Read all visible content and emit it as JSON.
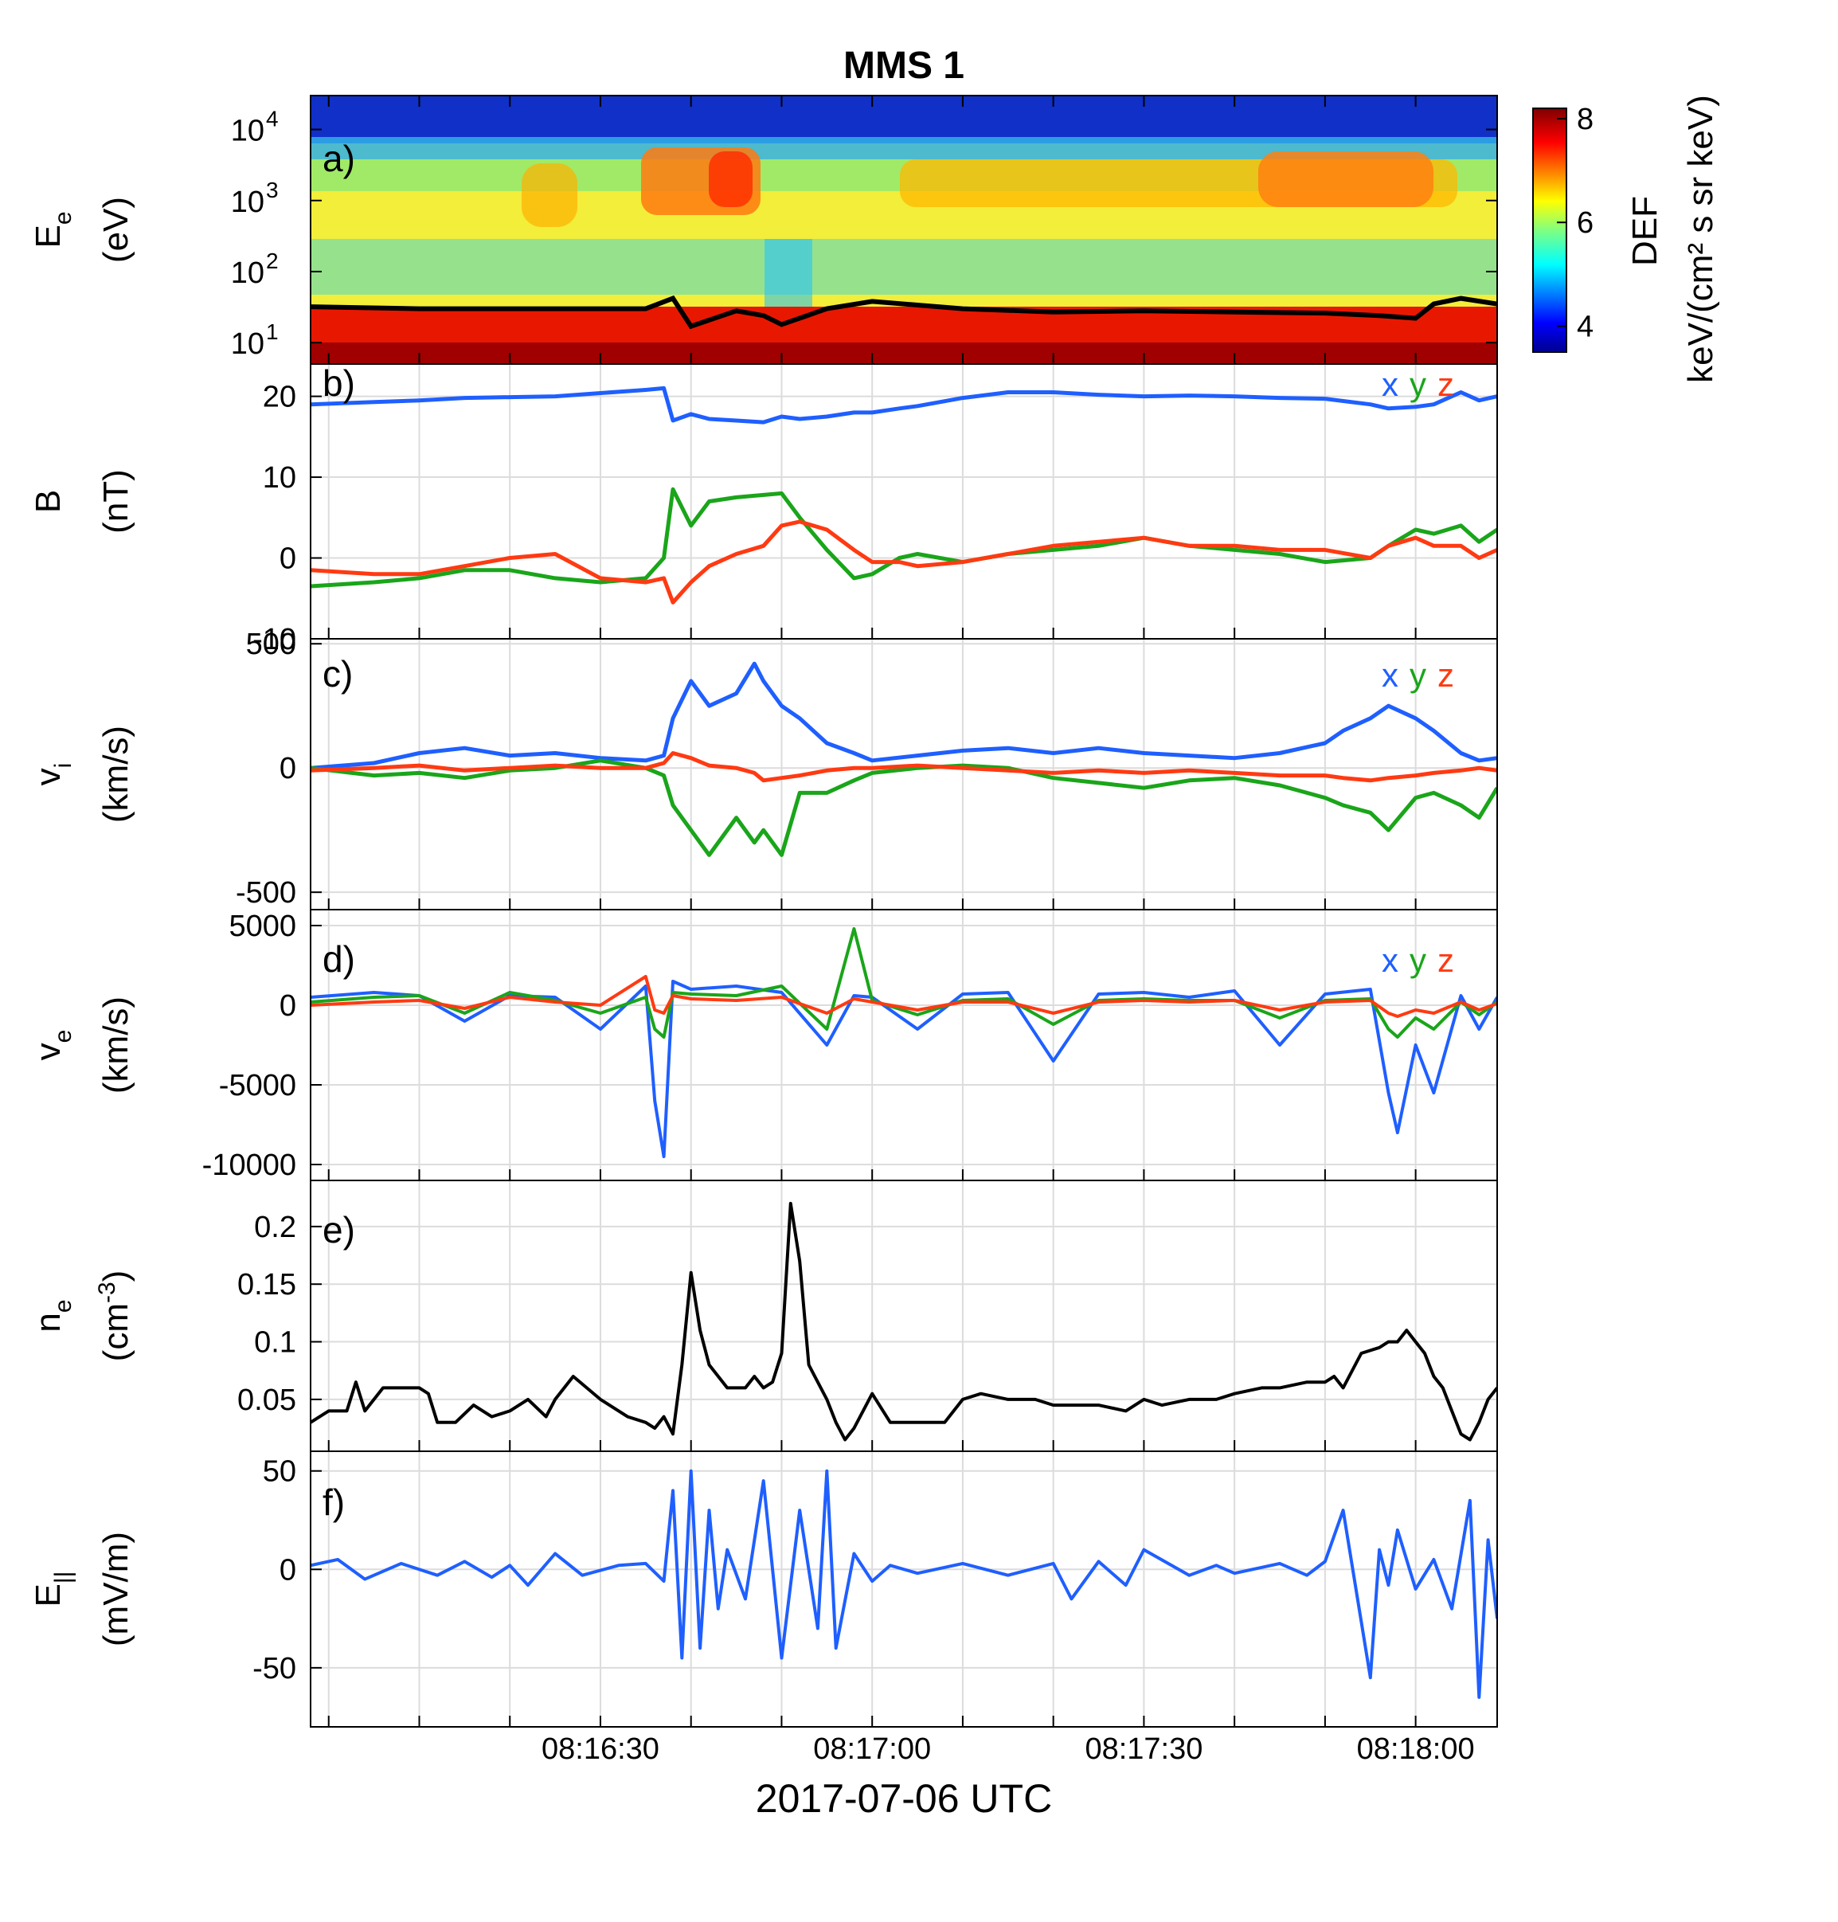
{
  "title": "MMS 1",
  "xlabel": "2017-07-06 UTC",
  "colors": {
    "x": "#1f5fff",
    "y": "#1aa51a",
    "z": "#ff3a12",
    "black": "#000000"
  },
  "x_axis": {
    "range_seconds": [
      "08:15:58",
      "08:18:09"
    ],
    "ticks": [
      "08:16:30",
      "08:17:00",
      "08:17:30",
      "08:18:00"
    ]
  },
  "colorbar": {
    "label": "DEF",
    "units": "keV/(cm² s sr keV)",
    "range": [
      3.5,
      8.2
    ],
    "ticks": [
      "4",
      "6",
      "8"
    ]
  },
  "panels": [
    {
      "tag": "a)",
      "ylabel": "E",
      "ylabel_sub": "e",
      "yunit": "(eV)",
      "yticks": [
        "10",
        "10",
        "10",
        "10"
      ],
      "yexp": [
        "1",
        "2",
        "3",
        "4"
      ]
    },
    {
      "tag": "b)",
      "ylabel": "B",
      "ylabel_sub": "",
      "yunit": "(nT)",
      "yticks": [
        "20",
        "10",
        "0",
        "-10"
      ],
      "legend": [
        "x",
        "y",
        "z"
      ]
    },
    {
      "tag": "c)",
      "ylabel": "v",
      "ylabel_sub": "i",
      "yunit": "(km/s)",
      "yticks": [
        "500",
        "0",
        "-500"
      ],
      "legend": [
        "x",
        "y",
        "z"
      ]
    },
    {
      "tag": "d)",
      "ylabel": "v",
      "ylabel_sub": "e",
      "yunit": "(km/s)",
      "yticks": [
        "5000",
        "0",
        "-5000",
        "-10000"
      ],
      "legend": [
        "x",
        "y",
        "z"
      ]
    },
    {
      "tag": "e)",
      "ylabel": "n",
      "ylabel_sub": "e",
      "yunit": "(cm",
      "yunit_sup": "-3",
      "yunit_end": ")",
      "yticks": [
        "0.2",
        "0.15",
        "0.1",
        "0.05"
      ]
    },
    {
      "tag": "f)",
      "ylabel": "E",
      "ylabel_sub": "||",
      "yunit": "(mV/m)",
      "yticks": [
        "50",
        "0",
        "-50"
      ]
    }
  ],
  "chart_data": [
    {
      "type": "heatmap",
      "panel": "a)",
      "ylabel": "E_e (eV)",
      "yscale": "log",
      "ylim": [
        5,
        30000
      ],
      "x_seconds_after_0816": [
        -2,
        129
      ],
      "description_values": {
        "background_DEF": 5.8,
        "high_flux_bands": [
          {
            "t": [
              39,
              51
            ],
            "E": [
              700,
              3000
            ],
            "DEF": 7.4
          },
          {
            "t": [
              88,
              124
            ],
            "E": [
              800,
              3000
            ],
            "DEF": 7.0
          }
        ],
        "low_energy_band_DEF": 8.0
      },
      "spacecraft_potential_line": {
        "x": [
          -2,
          10,
          25,
          35,
          38,
          40,
          45,
          48,
          50,
          55,
          60,
          70,
          80,
          90,
          100,
          110,
          116,
          120,
          122,
          125,
          129
        ],
        "y": [
          32,
          30,
          30,
          30,
          42,
          17,
          28,
          24,
          18,
          30,
          38,
          30,
          27,
          28,
          27,
          26,
          24,
          22,
          35,
          42,
          35
        ]
      }
    },
    {
      "type": "line",
      "panel": "b)",
      "ylabel": "B (nT)",
      "ylim": [
        -10,
        24
      ],
      "x": [
        -2,
        5,
        10,
        15,
        20,
        25,
        30,
        35,
        37,
        38,
        40,
        42,
        45,
        48,
        50,
        52,
        55,
        58,
        60,
        63,
        65,
        70,
        75,
        80,
        85,
        90,
        95,
        100,
        105,
        110,
        115,
        117,
        120,
        122,
        125,
        127,
        129
      ],
      "series": [
        {
          "name": "x",
          "values": [
            19,
            19.3,
            19.5,
            19.8,
            19.9,
            20.0,
            20.4,
            20.8,
            21,
            17,
            17.8,
            17.2,
            17.0,
            16.8,
            17.5,
            17.2,
            17.5,
            18.0,
            18.0,
            18.5,
            18.8,
            19.8,
            20.5,
            20.5,
            20.2,
            20.0,
            20.1,
            20.0,
            19.8,
            19.7,
            19.0,
            18.5,
            18.7,
            19.0,
            20.5,
            19.5,
            20.0
          ]
        },
        {
          "name": "y",
          "values": [
            -3.5,
            -3,
            -2.5,
            -1.5,
            -1.5,
            -2.5,
            -3,
            -2.5,
            0,
            8.5,
            4,
            7,
            7.5,
            7.8,
            8,
            5,
            1,
            -2.5,
            -2,
            0,
            0.5,
            -0.5,
            0.5,
            1,
            1.5,
            2.5,
            1.5,
            1,
            0.5,
            -0.5,
            0,
            1.5,
            3.5,
            3,
            4,
            2,
            3.5
          ]
        },
        {
          "name": "z",
          "values": [
            -1.5,
            -2,
            -2,
            -1,
            0,
            0.5,
            -2.5,
            -3,
            -2.5,
            -5.5,
            -3,
            -1,
            0.5,
            1.5,
            4,
            4.5,
            3.5,
            1,
            -0.5,
            -0.5,
            -1,
            -0.5,
            0.5,
            1.5,
            2,
            2.5,
            1.5,
            1.5,
            1,
            1,
            0,
            1.5,
            2.5,
            1.5,
            1.5,
            0,
            1
          ]
        }
      ]
    },
    {
      "type": "line",
      "panel": "c)",
      "ylabel": "v_i (km/s)",
      "ylim": [
        -570,
        520
      ],
      "x": [
        -2,
        5,
        10,
        15,
        20,
        25,
        30,
        35,
        37,
        38,
        40,
        42,
        45,
        47,
        48,
        50,
        52,
        55,
        58,
        60,
        65,
        70,
        75,
        80,
        85,
        90,
        95,
        100,
        105,
        110,
        112,
        115,
        117,
        120,
        122,
        125,
        127,
        129
      ],
      "series": [
        {
          "name": "x",
          "values": [
            0,
            20,
            60,
            80,
            50,
            60,
            40,
            30,
            50,
            200,
            350,
            250,
            300,
            420,
            350,
            250,
            200,
            100,
            60,
            30,
            50,
            70,
            80,
            60,
            80,
            60,
            50,
            40,
            60,
            100,
            150,
            200,
            250,
            200,
            150,
            60,
            30,
            40
          ]
        },
        {
          "name": "y",
          "values": [
            0,
            -30,
            -20,
            -40,
            -10,
            0,
            30,
            0,
            -30,
            -150,
            -250,
            -350,
            -200,
            -300,
            -250,
            -350,
            -100,
            -100,
            -50,
            -20,
            0,
            10,
            0,
            -40,
            -60,
            -80,
            -50,
            -40,
            -70,
            -120,
            -150,
            -180,
            -250,
            -120,
            -100,
            -150,
            -200,
            -80
          ]
        },
        {
          "name": "z",
          "values": [
            -10,
            0,
            10,
            -10,
            0,
            10,
            0,
            0,
            20,
            60,
            40,
            10,
            0,
            -20,
            -50,
            -40,
            -30,
            -10,
            0,
            0,
            10,
            0,
            -10,
            -20,
            -10,
            -20,
            -10,
            -20,
            -30,
            -30,
            -40,
            -50,
            -40,
            -30,
            -20,
            -10,
            0,
            -10
          ]
        }
      ]
    },
    {
      "type": "line",
      "panel": "d)",
      "ylabel": "v_e (km/s)",
      "ylim": [
        -11000,
        6000
      ],
      "x": [
        -2,
        5,
        10,
        15,
        20,
        25,
        30,
        35,
        36,
        37,
        38,
        40,
        45,
        50,
        55,
        58,
        60,
        65,
        70,
        75,
        80,
        85,
        90,
        95,
        100,
        105,
        110,
        115,
        117,
        118,
        120,
        122,
        125,
        127,
        129
      ],
      "series": [
        {
          "name": "x",
          "values": [
            500,
            800,
            600,
            -1000,
            600,
            500,
            -1500,
            1200,
            -6000,
            -9500,
            1500,
            1000,
            1200,
            800,
            -2500,
            600,
            500,
            -1500,
            700,
            800,
            -3500,
            700,
            800,
            500,
            900,
            -2500,
            700,
            1000,
            -5500,
            -8000,
            -2500,
            -5500,
            600,
            -1500,
            500
          ]
        },
        {
          "name": "y",
          "values": [
            200,
            500,
            600,
            -500,
            800,
            300,
            -500,
            500,
            -1500,
            -2000,
            800,
            700,
            600,
            1200,
            -1500,
            4800,
            300,
            -600,
            300,
            400,
            -1200,
            300,
            400,
            300,
            300,
            -800,
            300,
            400,
            -1500,
            -2000,
            -800,
            -1500,
            200,
            -600,
            200
          ]
        },
        {
          "name": "z",
          "values": [
            0,
            200,
            300,
            -200,
            500,
            200,
            0,
            1800,
            -300,
            -500,
            600,
            400,
            300,
            500,
            -500,
            400,
            200,
            -300,
            200,
            200,
            -500,
            200,
            300,
            200,
            300,
            -300,
            200,
            300,
            -500,
            -700,
            -300,
            -500,
            200,
            -300,
            100
          ]
        }
      ]
    },
    {
      "type": "line",
      "panel": "e)",
      "ylabel": "n_e (cm^-3)",
      "ylim": [
        0.005,
        0.24
      ],
      "x": [
        -2,
        0,
        2,
        3,
        4,
        6,
        8,
        10,
        11,
        12,
        14,
        16,
        18,
        20,
        22,
        24,
        25,
        27,
        30,
        33,
        35,
        36,
        37,
        38,
        39,
        40,
        41,
        42,
        44,
        46,
        47,
        48,
        49,
        50,
        51,
        52,
        53,
        54,
        55,
        56,
        57,
        58,
        60,
        62,
        65,
        68,
        70,
        72,
        75,
        78,
        80,
        82,
        85,
        88,
        90,
        92,
        95,
        98,
        100,
        103,
        105,
        108,
        110,
        111,
        112,
        114,
        116,
        117,
        118,
        119,
        120,
        121,
        122,
        123,
        124,
        125,
        126,
        127,
        128,
        129
      ],
      "values": [
        0.03,
        0.04,
        0.04,
        0.065,
        0.04,
        0.06,
        0.06,
        0.06,
        0.055,
        0.03,
        0.03,
        0.045,
        0.035,
        0.04,
        0.05,
        0.035,
        0.05,
        0.07,
        0.05,
        0.035,
        0.03,
        0.025,
        0.035,
        0.02,
        0.08,
        0.16,
        0.11,
        0.08,
        0.06,
        0.06,
        0.07,
        0.06,
        0.065,
        0.09,
        0.22,
        0.17,
        0.08,
        0.065,
        0.05,
        0.03,
        0.015,
        0.025,
        0.055,
        0.03,
        0.03,
        0.03,
        0.05,
        0.055,
        0.05,
        0.05,
        0.045,
        0.045,
        0.045,
        0.04,
        0.05,
        0.045,
        0.05,
        0.05,
        0.055,
        0.06,
        0.06,
        0.065,
        0.065,
        0.07,
        0.06,
        0.09,
        0.095,
        0.1,
        0.1,
        0.11,
        0.1,
        0.09,
        0.07,
        0.06,
        0.04,
        0.02,
        0.015,
        0.03,
        0.05,
        0.06
      ]
    },
    {
      "type": "line",
      "panel": "f)",
      "ylabel": "E_|| (mV/m)",
      "ylim": [
        -80,
        60
      ],
      "x": [
        -2,
        1,
        4,
        8,
        12,
        15,
        18,
        20,
        22,
        25,
        28,
        32,
        35,
        37,
        38,
        39,
        40,
        41,
        42,
        43,
        44,
        46,
        48,
        50,
        52,
        54,
        55,
        56,
        58,
        60,
        62,
        65,
        70,
        75,
        80,
        82,
        85,
        88,
        90,
        95,
        98,
        100,
        105,
        108,
        110,
        112,
        115,
        116,
        117,
        118,
        120,
        122,
        124,
        126,
        127,
        128,
        129
      ],
      "values": [
        2,
        5,
        -5,
        3,
        -3,
        4,
        -4,
        2,
        -8,
        8,
        -3,
        2,
        3,
        -6,
        40,
        -45,
        50,
        -40,
        30,
        -20,
        10,
        -15,
        45,
        -45,
        30,
        -30,
        50,
        -40,
        8,
        -6,
        2,
        -2,
        3,
        -3,
        3,
        -15,
        4,
        -8,
        10,
        -3,
        2,
        -2,
        3,
        -3,
        4,
        30,
        -55,
        10,
        -8,
        20,
        -10,
        5,
        -20,
        35,
        -65,
        15,
        -25
      ]
    }
  ]
}
